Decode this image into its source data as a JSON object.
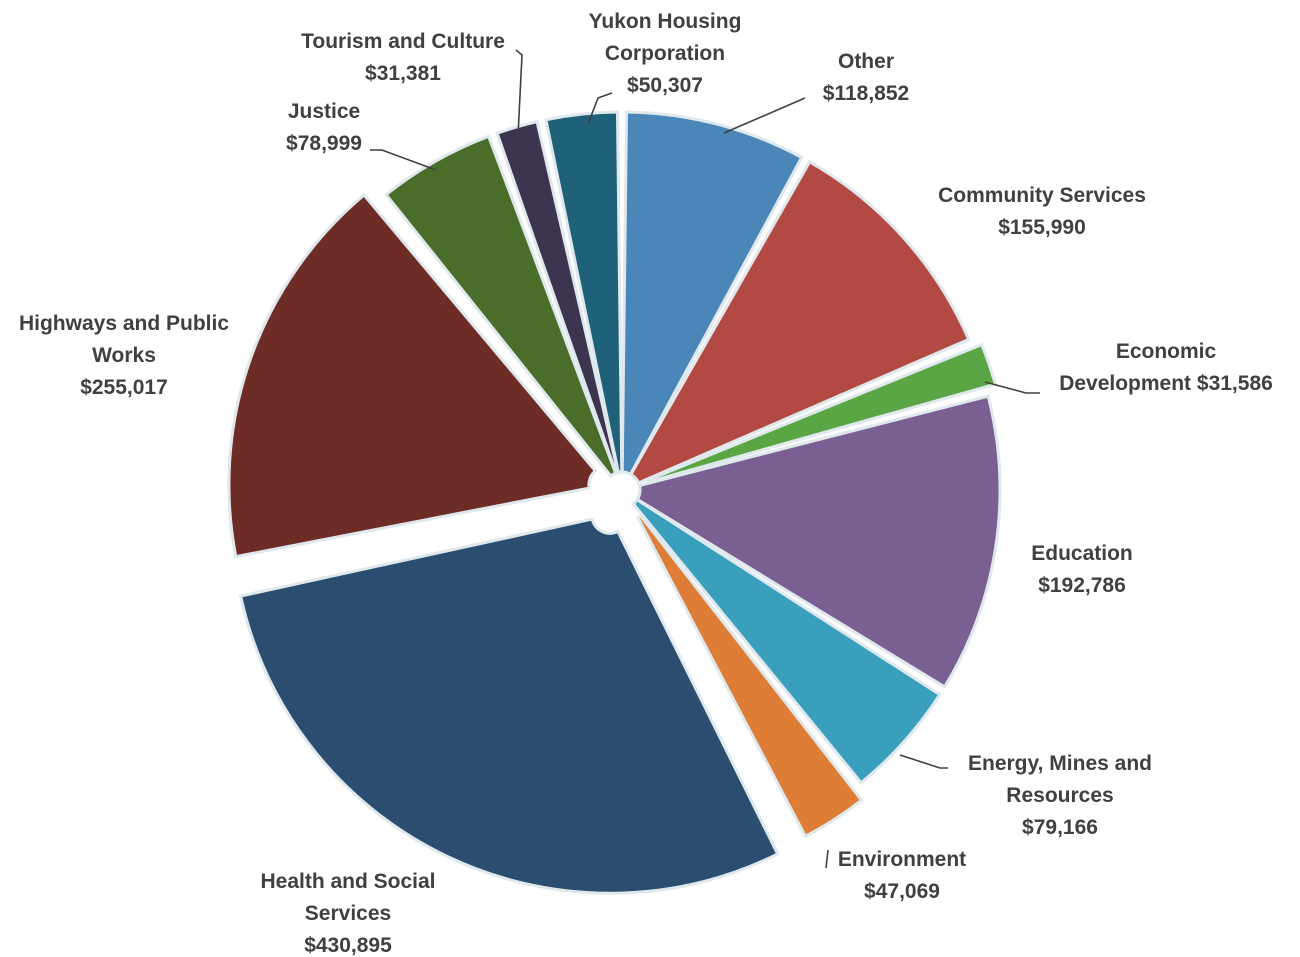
{
  "chart_data": {
    "type": "pie",
    "title": "",
    "legend": "none",
    "currency_prefix": "$",
    "slices": [
      {
        "key": "other",
        "label_lines": [
          "Other"
        ],
        "value_text": "$118,852",
        "value": 118852,
        "color": "#4b86b8"
      },
      {
        "key": "community-services",
        "label_lines": [
          "Community Services"
        ],
        "value_text": "$155,990",
        "value": 155990,
        "color": "#b24a43"
      },
      {
        "key": "economic-development",
        "label_lines": [
          "Economic",
          "Development"
        ],
        "value_text": "$31,586",
        "value": 31586,
        "color": "#5aa544"
      },
      {
        "key": "education",
        "label_lines": [
          "Education"
        ],
        "value_text": "$192,786",
        "value": 192786,
        "color": "#7a5f92"
      },
      {
        "key": "energy-mines-resources",
        "label_lines": [
          "Energy, Mines and",
          "Resources"
        ],
        "value_text": "$79,166",
        "value": 79166,
        "color": "#3a9fbd"
      },
      {
        "key": "environment",
        "label_lines": [
          "Environment"
        ],
        "value_text": "$47,069",
        "value": 47069,
        "color": "#de7d35"
      },
      {
        "key": "health-social-services",
        "label_lines": [
          "Health and Social",
          "Services"
        ],
        "value_text": "$430,895",
        "value": 430895,
        "color": "#2b4e70"
      },
      {
        "key": "highways-public-works",
        "label_lines": [
          "Highways and Public",
          "Works"
        ],
        "value_text": "$255,017",
        "value": 255017,
        "color": "#6e2c27"
      },
      {
        "key": "justice",
        "label_lines": [
          "Justice"
        ],
        "value_text": "$78,999",
        "value": 78999,
        "color": "#4a6d2a"
      },
      {
        "key": "tourism-culture",
        "label_lines": [
          "Tourism and Culture"
        ],
        "value_text": "$31,381",
        "value": 31381,
        "color": "#3d3550"
      },
      {
        "key": "yukon-housing",
        "label_lines": [
          "Yukon Housing",
          "Corporation"
        ],
        "value_text": "$50,307",
        "value": 50307,
        "color": "#1f6179"
      }
    ]
  }
}
